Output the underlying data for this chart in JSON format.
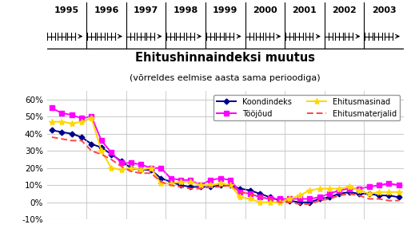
{
  "title": "Ehitushinnaindeksi muutus",
  "subtitle": "(võrreldes eelmise aasta sama perioodiga)",
  "years": [
    1995,
    1996,
    1997,
    1998,
    1999,
    2000,
    2001,
    2002,
    2003
  ],
  "quarters_per_year": 4,
  "koondindeks": [
    42,
    41,
    40,
    38,
    34,
    32,
    28,
    24,
    20,
    19,
    19,
    14,
    12,
    10,
    9,
    9,
    9,
    10,
    10,
    8,
    7,
    5,
    3,
    1,
    1,
    0,
    0,
    2,
    3,
    5,
    6,
    5,
    5,
    4,
    4,
    3
  ],
  "tooojoud": [
    55,
    52,
    51,
    49,
    50,
    36,
    29,
    23,
    23,
    22,
    20,
    20,
    14,
    13,
    13,
    10,
    13,
    14,
    13,
    6,
    5,
    3,
    2,
    2,
    2,
    2,
    2,
    3,
    5,
    7,
    8,
    8,
    9,
    10,
    11,
    10
  ],
  "ehitusmasinad": [
    47,
    47,
    46,
    47,
    49,
    30,
    20,
    19,
    20,
    19,
    20,
    11,
    11,
    12,
    12,
    10,
    10,
    11,
    10,
    3,
    2,
    0,
    0,
    0,
    2,
    4,
    7,
    8,
    8,
    8,
    9,
    7,
    5,
    6,
    6,
    6
  ],
  "ehitusmaterjalid": [
    38,
    37,
    36,
    36,
    30,
    28,
    25,
    21,
    18,
    17,
    17,
    12,
    10,
    9,
    8,
    8,
    9,
    9,
    10,
    6,
    5,
    3,
    2,
    0,
    0,
    -1,
    -1,
    1,
    2,
    4,
    5,
    4,
    2,
    2,
    1,
    1
  ],
  "koondindeks_color": "#00008B",
  "tooojoud_color": "#FF00FF",
  "ehitusmasinad_color": "#FFD700",
  "ehitusmaterjalid_color": "#FF4444",
  "ylim": [
    -10,
    65
  ],
  "yticks": [
    -10,
    0,
    10,
    20,
    30,
    40,
    50,
    60
  ],
  "background_color": "#FFFFFF",
  "grid_color": "#CCCCCC"
}
